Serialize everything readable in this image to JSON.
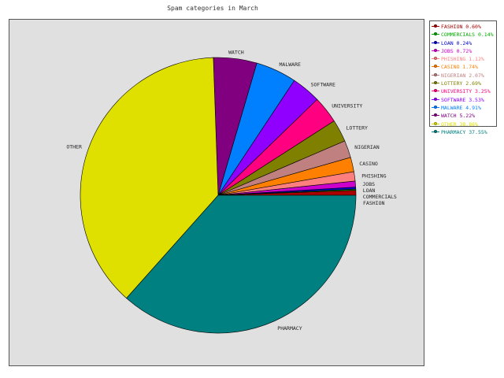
{
  "chart_title": "Spam categories in March",
  "chart_data": {
    "type": "pie",
    "title": "Spam categories in March",
    "legend_position": "top-right",
    "slices": [
      {
        "label": "FASHION",
        "legend": "FASHION 0.60%",
        "value": 0.6,
        "color": "#aa0000"
      },
      {
        "label": "COMMERCIALS",
        "legend": "COMMERCIALS 0.14%",
        "value": 0.14,
        "color": "#00aa00"
      },
      {
        "label": "LOAN",
        "legend": "LOAN 0.24%",
        "value": 0.24,
        "color": "#0000cc"
      },
      {
        "label": "JOBS",
        "legend": "JOBS 0.72%",
        "value": 0.72,
        "color": "#cc00cc"
      },
      {
        "label": "PHISHING",
        "legend": "PHISHING 1.12%",
        "value": 1.12,
        "color": "#ff7f7f"
      },
      {
        "label": "CASINO",
        "legend": "CASINO 1.74%",
        "value": 1.74,
        "color": "#ff8000"
      },
      {
        "label": "NIGERIAN",
        "legend": "NIGERIAN 2.07%",
        "value": 2.07,
        "color": "#c08080"
      },
      {
        "label": "LOTTERY",
        "legend": "LOTTERY 2.69%",
        "value": 2.69,
        "color": "#808000"
      },
      {
        "label": "UNIVERSITY",
        "legend": "UNIVERSITY 3.25%",
        "value": 3.25,
        "color": "#ff0080"
      },
      {
        "label": "SOFTWARE",
        "legend": "SOFTWARE 3.53%",
        "value": 3.53,
        "color": "#9000ff"
      },
      {
        "label": "MALWARE",
        "legend": "MALWARE 4.91%",
        "value": 4.91,
        "color": "#0080ff"
      },
      {
        "label": "WATCH",
        "legend": "WATCH 5.22%",
        "value": 5.22,
        "color": "#800080"
      },
      {
        "label": "OTHER",
        "legend": "OTHER 38.86%",
        "value": 38.86,
        "color": "#e0e000"
      },
      {
        "label": "PHARMACY",
        "legend": "PHARMACY 37.55%",
        "value": 37.55,
        "color": "#008080"
      }
    ]
  }
}
